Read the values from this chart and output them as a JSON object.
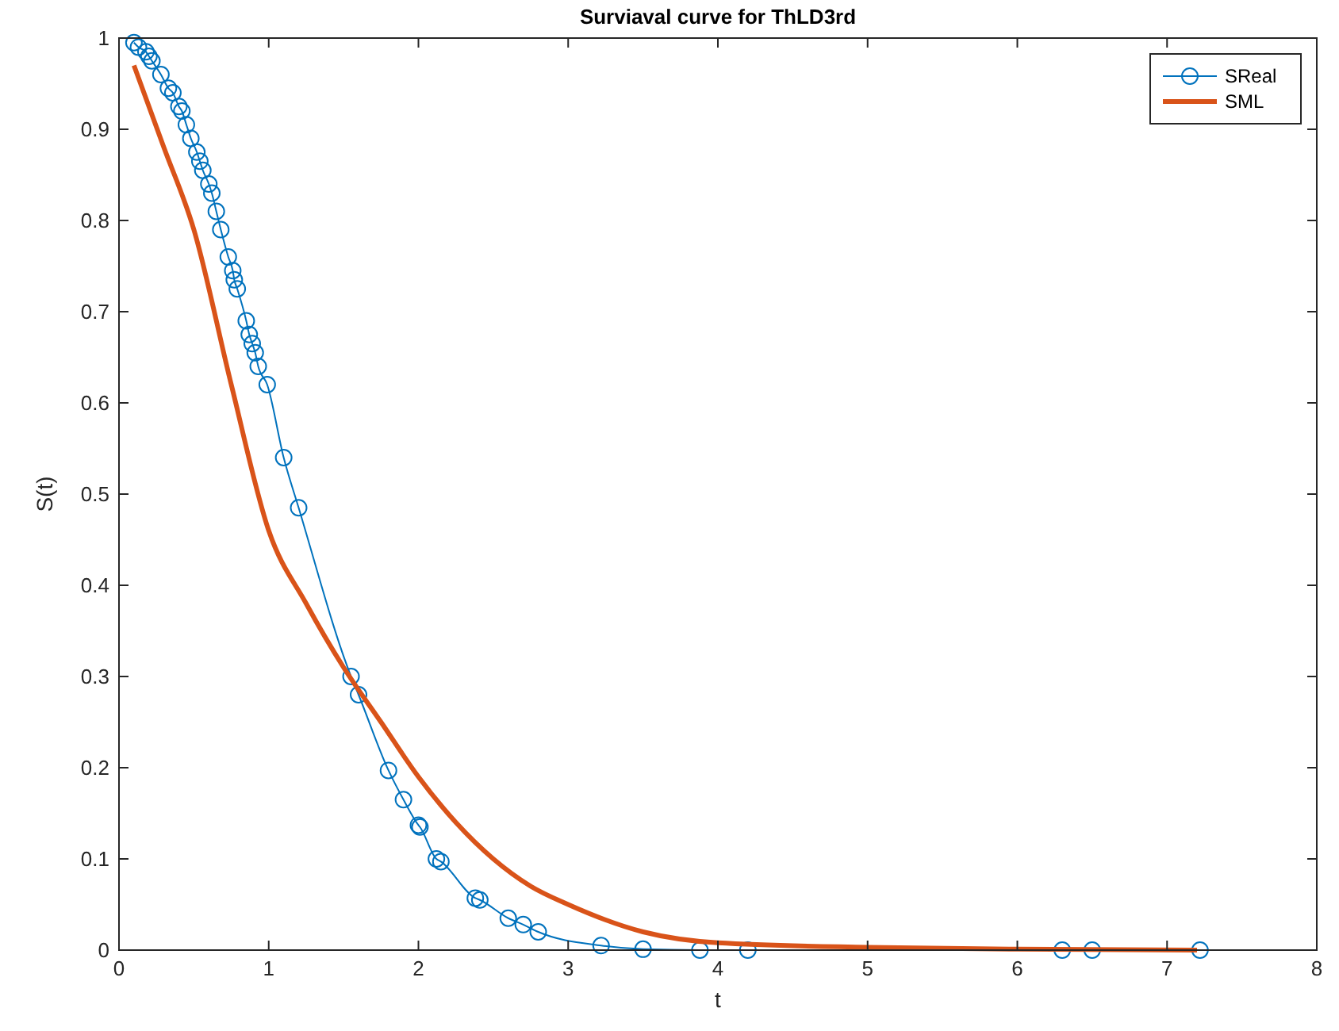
{
  "chart_data": {
    "type": "line",
    "title": "Surviaval curve for ThLD3rd",
    "xlabel": "t",
    "ylabel": "S(t)",
    "xlim": [
      0,
      8
    ],
    "ylim": [
      0,
      1
    ],
    "xticks": [
      0,
      1,
      2,
      3,
      4,
      5,
      6,
      7,
      8
    ],
    "yticks": [
      0,
      0.1,
      0.2,
      0.3,
      0.4,
      0.5,
      0.6,
      0.7,
      0.8,
      0.9,
      1
    ],
    "grid": false,
    "legend": "top right",
    "series": [
      {
        "name": "SReal",
        "color": "#0072bd",
        "marker": "circle",
        "x": [
          0.1,
          0.13,
          0.18,
          0.2,
          0.22,
          0.28,
          0.33,
          0.36,
          0.4,
          0.42,
          0.45,
          0.48,
          0.52,
          0.54,
          0.56,
          0.6,
          0.62,
          0.65,
          0.68,
          0.73,
          0.76,
          0.77,
          0.79,
          0.85,
          0.87,
          0.89,
          0.91,
          0.93,
          0.99,
          1.1,
          1.2,
          1.55,
          1.6,
          1.8,
          1.9,
          2.0,
          2.01,
          2.12,
          2.15,
          2.38,
          2.41,
          2.6,
          2.7,
          2.8,
          3.22,
          3.5,
          3.88,
          4.2,
          6.3,
          6.5,
          7.22
        ],
        "values": [
          0.995,
          0.99,
          0.985,
          0.98,
          0.975,
          0.96,
          0.945,
          0.94,
          0.925,
          0.92,
          0.905,
          0.89,
          0.875,
          0.865,
          0.855,
          0.84,
          0.83,
          0.81,
          0.79,
          0.76,
          0.745,
          0.735,
          0.725,
          0.69,
          0.675,
          0.665,
          0.655,
          0.64,
          0.62,
          0.54,
          0.485,
          0.3,
          0.28,
          0.197,
          0.165,
          0.137,
          0.135,
          0.1,
          0.097,
          0.057,
          0.055,
          0.035,
          0.028,
          0.02,
          0.005,
          0.001,
          0,
          0,
          0,
          0,
          0
        ]
      },
      {
        "name": "SML",
        "color": "#d95319",
        "marker": "none",
        "x": [
          0.1,
          0.3,
          0.5,
          0.75,
          1.0,
          1.25,
          1.5,
          1.75,
          2.0,
          2.25,
          2.5,
          2.75,
          3.0,
          3.5,
          4.0,
          5.0,
          6.0,
          7.2
        ],
        "values": [
          0.97,
          0.88,
          0.79,
          0.62,
          0.46,
          0.38,
          0.31,
          0.25,
          0.19,
          0.14,
          0.1,
          0.07,
          0.05,
          0.02,
          0.008,
          0.003,
          0.001,
          0
        ]
      }
    ]
  }
}
